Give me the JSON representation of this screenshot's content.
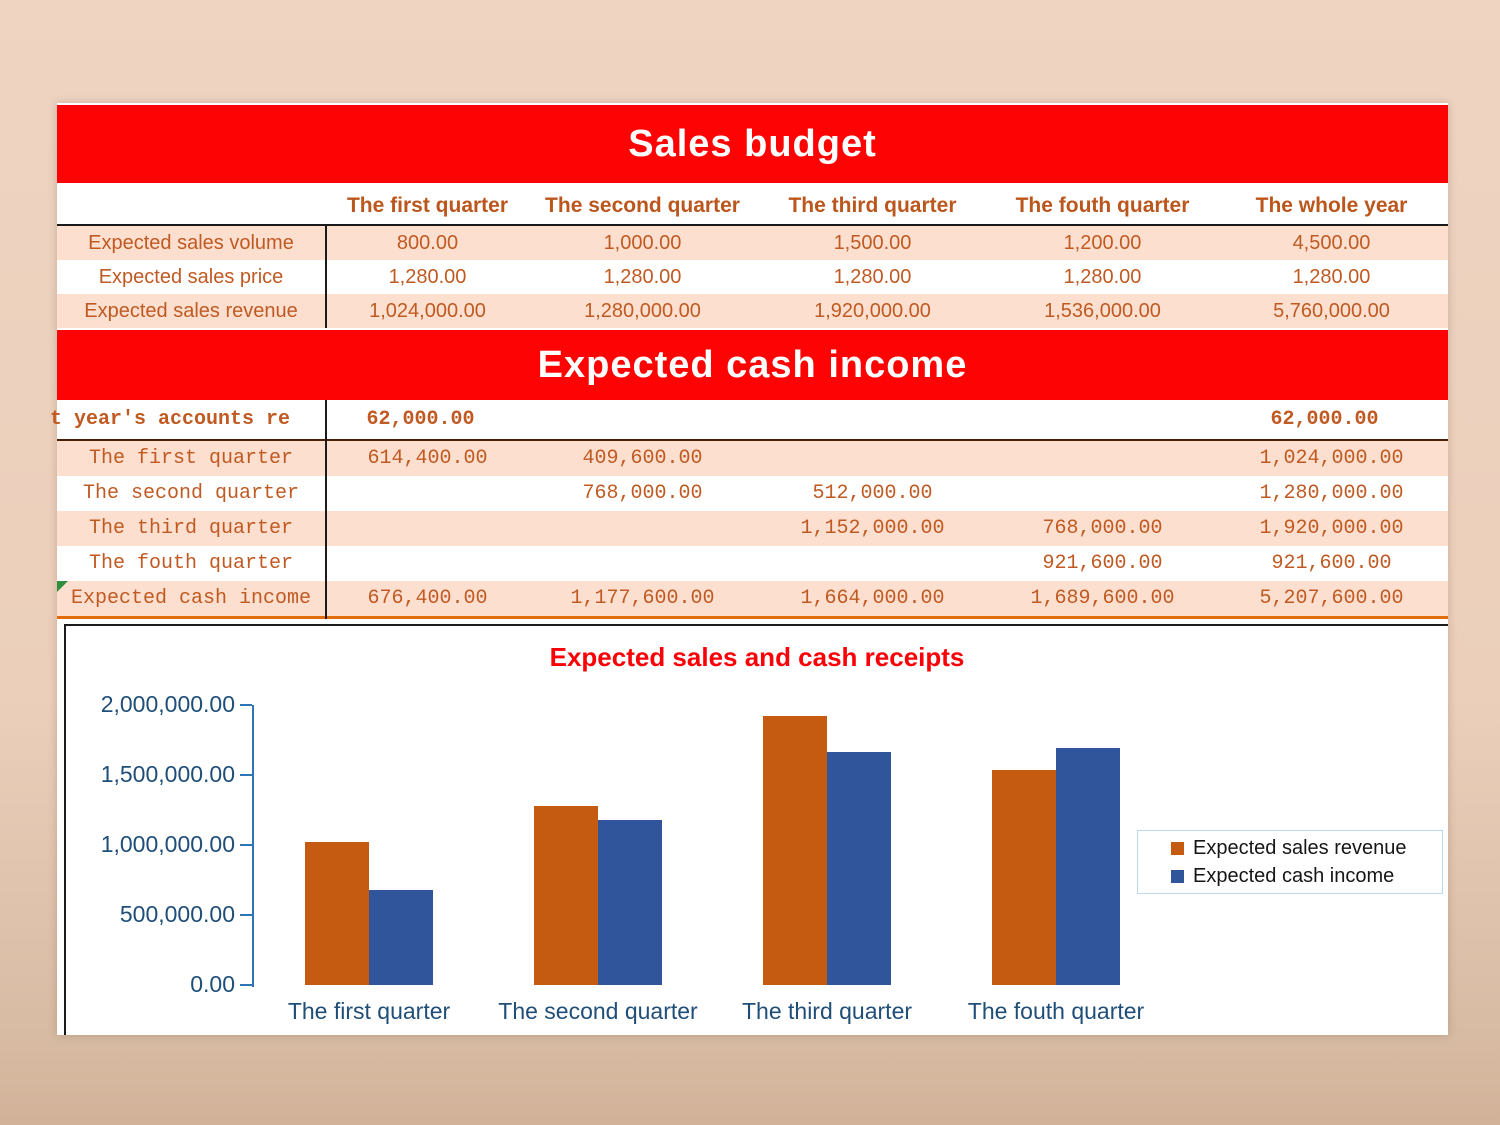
{
  "banners": {
    "sales": "Sales budget",
    "cash": "Expected cash income"
  },
  "sales_table": {
    "columns": [
      "The first quarter",
      "The second quarter",
      "The third quarter",
      "The fouth quarter",
      "The whole year"
    ],
    "rows": [
      {
        "label": "Expected sales volume",
        "values": [
          "800.00",
          "1,000.00",
          "1,500.00",
          "1,200.00",
          "4,500.00"
        ]
      },
      {
        "label": "Expected sales price",
        "values": [
          "1,280.00",
          "1,280.00",
          "1,280.00",
          "1,280.00",
          "1,280.00"
        ]
      },
      {
        "label": "Expected sales revenue",
        "values": [
          "1,024,000.00",
          "1,280,000.00",
          "1,920,000.00",
          "1,536,000.00",
          "5,760,000.00"
        ]
      }
    ]
  },
  "cash_table": {
    "rows": [
      {
        "label": "t year's accounts re",
        "values": [
          "62,000.00",
          "",
          "",
          "",
          "62,000.00"
        ]
      },
      {
        "label": "The first quarter",
        "values": [
          "614,400.00",
          "409,600.00",
          "",
          "",
          "1,024,000.00"
        ]
      },
      {
        "label": "The second quarter",
        "values": [
          "",
          "768,000.00",
          "512,000.00",
          "",
          "1,280,000.00"
        ]
      },
      {
        "label": "The third quarter",
        "values": [
          "",
          "",
          "1,152,000.00",
          "768,000.00",
          "1,920,000.00"
        ]
      },
      {
        "label": "The fouth quarter",
        "values": [
          "",
          "",
          "",
          "921,600.00",
          "921,600.00"
        ]
      },
      {
        "label": "Expected cash income",
        "values": [
          "676,400.00",
          "1,177,600.00",
          "1,664,000.00",
          "1,689,600.00",
          "5,207,600.00"
        ]
      }
    ]
  },
  "chart_data": {
    "type": "bar",
    "title": "Expected sales and cash receipts",
    "categories": [
      "The first quarter",
      "The second quarter",
      "The third quarter",
      "The fouth quarter"
    ],
    "series": [
      {
        "name": "Expected sales revenue",
        "color": "#c55a11",
        "values": [
          1024000,
          1280000,
          1920000,
          1536000
        ]
      },
      {
        "name": "Expected cash income",
        "color": "#30559b",
        "values": [
          676400,
          1177600,
          1664000,
          1689600
        ]
      }
    ],
    "ylim": [
      0,
      2000000
    ],
    "ytick_step": 500000,
    "ytick_labels": [
      "0.00",
      "500,000.00",
      "1,000,000.00",
      "1,500,000.00",
      "2,000,000.00"
    ],
    "legend_position": "right",
    "grid": false
  },
  "colors": {
    "banner_red": "#fe0303",
    "table_text_orange": "#c05a22",
    "row_peach": "#fcdfcf",
    "axis_blue": "#2e75b6",
    "axis_label_blue": "#1f4e79",
    "title_red": "#fb0007"
  }
}
